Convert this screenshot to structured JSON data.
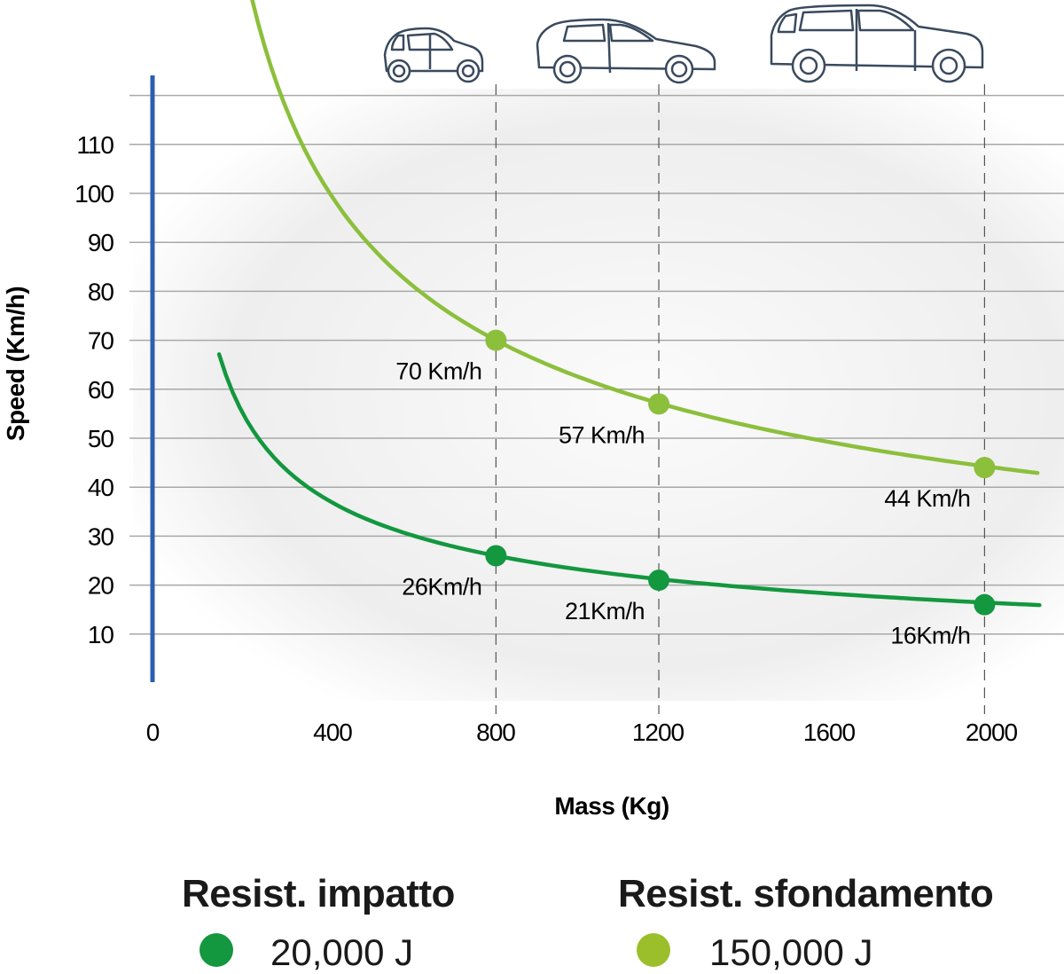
{
  "chart_data": {
    "type": "line",
    "xlabel": "Mass (Kg)",
    "ylabel": "Speed (Km/h)",
    "xlim": [
      0,
      2100
    ],
    "ylim": [
      0,
      120
    ],
    "x_ticks": [
      "0",
      "400",
      "800",
      "1200",
      "1600",
      "2000"
    ],
    "y_ticks": [
      "10",
      "20",
      "30",
      "40",
      "50",
      "60",
      "70",
      "80",
      "90",
      "100",
      "110"
    ],
    "grid": "horizontal",
    "reference_lines_x": [
      800,
      1200,
      2000
    ],
    "vehicle_icons": [
      "city-car-icon",
      "hatchback-car-icon",
      "suv-car-icon"
    ],
    "series": [
      {
        "name": "Resist. impatto",
        "energy": "20,000 J",
        "color": "#13973f",
        "curve_mass_range": [
          120,
          2135
        ],
        "points": [
          {
            "x": 800,
            "y": 26,
            "label": "26Km/h"
          },
          {
            "x": 1200,
            "y": 21,
            "label": "21Km/h"
          },
          {
            "x": 2000,
            "y": 16,
            "label": "16Km/h"
          }
        ]
      },
      {
        "name": "Resist. sfondamento",
        "energy": "150,000 J",
        "color": "#8cbf3c",
        "curve_mass_range": [
          200,
          2130
        ],
        "points": [
          {
            "x": 800,
            "y": 70,
            "label": "70 Km/h"
          },
          {
            "x": 1200,
            "y": 57,
            "label": "57 Km/h"
          },
          {
            "x": 2000,
            "y": 44,
            "label": "44 Km/h"
          }
        ]
      }
    ]
  },
  "legend": [
    {
      "title": "Resist. impatto",
      "value": "20,000 J",
      "color": "#13973f"
    },
    {
      "title": "Resist. sfondamento",
      "value": "150,000 J",
      "color": "#9bbf2a"
    }
  ],
  "axis_color": "#2b5fae"
}
